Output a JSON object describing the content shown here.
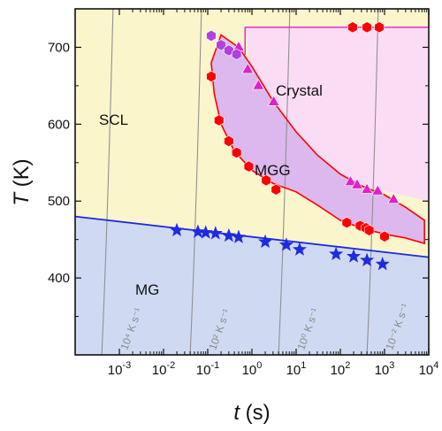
{
  "chart_data": {
    "type": "scatter",
    "title": "",
    "xlabel": "t (s)",
    "ylabel": "T (K)",
    "xscale": "log",
    "xlim": [
      0.0001,
      10000
    ],
    "ylim": [
      300,
      750
    ],
    "x_ticks": [
      0.001,
      0.01,
      0.1,
      1,
      10,
      100,
      1000,
      10000
    ],
    "x_tick_labels": [
      {
        "base": "10",
        "exp": "-3"
      },
      {
        "base": "10",
        "exp": "-2"
      },
      {
        "base": "10",
        "exp": "-1"
      },
      {
        "base": "10",
        "exp": "0"
      },
      {
        "base": "10",
        "exp": "1"
      },
      {
        "base": "10",
        "exp": "2"
      },
      {
        "base": "10",
        "exp": "3"
      },
      {
        "base": "10",
        "exp": "4"
      }
    ],
    "y_ticks": [
      400,
      500,
      600,
      700
    ],
    "y_tick_labels": [
      "400",
      "500",
      "600",
      "700"
    ],
    "region_labels": [
      "SCL",
      "Crystal",
      "MGG",
      "MG"
    ],
    "rate_labels": [
      {
        "text": "10⁴ K s⁻¹",
        "x": 0.0015,
        "y": 340
      },
      {
        "text": "10² K s⁻¹",
        "x": 0.15,
        "y": 340
      },
      {
        "text": "10⁰ K s⁻¹",
        "x": 15,
        "y": 340
      },
      {
        "text": "10⁻² K s⁻¹",
        "x": 1500,
        "y": 340
      }
    ],
    "colors": {
      "scl": "#fbf5cc",
      "mg": "#cfdaf2",
      "crystal": "#fbdcf5",
      "mgg": "#dcb8ee",
      "red": "#ff0000",
      "magenta": "#e020c8",
      "purple": "#b040e0",
      "blue": "#1f2be0",
      "gray": "#909090"
    },
    "series": [
      {
        "marker": "star",
        "color": "#1f2be0",
        "points": [
          [
            0.02,
            462
          ],
          [
            0.06,
            460
          ],
          [
            0.09,
            459
          ],
          [
            0.15,
            458
          ],
          [
            0.3,
            455
          ],
          [
            0.5,
            453
          ],
          [
            2,
            447
          ],
          [
            6,
            443
          ],
          [
            12,
            437
          ],
          [
            80,
            431
          ],
          [
            200,
            428
          ],
          [
            400,
            423
          ],
          [
            900,
            418
          ]
        ]
      },
      {
        "marker": "hexagon",
        "color": "#ff0000",
        "points": [
          [
            0.12,
            662
          ],
          [
            0.18,
            605
          ],
          [
            0.3,
            578
          ],
          [
            0.45,
            563
          ],
          [
            0.85,
            545
          ],
          [
            2.1,
            527
          ],
          [
            3.5,
            515
          ],
          [
            140,
            472
          ],
          [
            280,
            468
          ],
          [
            380,
            465
          ],
          [
            450,
            462
          ],
          [
            1000,
            454
          ]
        ]
      },
      {
        "marker": "hexagon",
        "color": "#ff0000",
        "points": [
          [
            190,
            726
          ],
          [
            400,
            726
          ],
          [
            760,
            726
          ]
        ]
      },
      {
        "marker": "triangle",
        "color": "#e020c8",
        "points": [
          [
            0.5,
            700
          ],
          [
            0.8,
            671
          ],
          [
            1.4,
            650
          ],
          [
            3.1,
            629
          ],
          [
            170,
            525
          ],
          [
            240,
            521
          ],
          [
            400,
            515
          ],
          [
            700,
            513
          ],
          [
            1600,
            502
          ]
        ]
      },
      {
        "marker": "hexagon",
        "color": "#b040e0",
        "points": [
          [
            0.12,
            715
          ],
          [
            0.2,
            703
          ],
          [
            0.3,
            696
          ],
          [
            0.45,
            691
          ]
        ]
      }
    ]
  }
}
